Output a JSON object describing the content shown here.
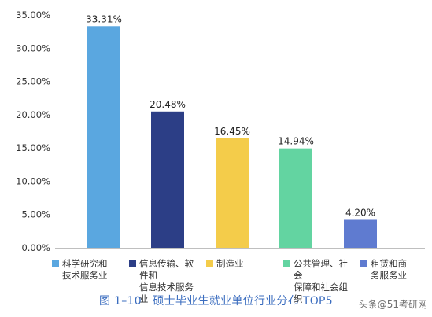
{
  "chart_data": {
    "type": "bar",
    "categories": [
      "科学研究和\n技术服务业",
      "信息传输、软件和\n信息技术服务业",
      "制造业",
      "公共管理、社会\n保障和社会组织",
      "租赁和商\n务服务业"
    ],
    "values": [
      33.31,
      20.48,
      16.45,
      14.94,
      4.2
    ],
    "value_labels": [
      "33.31%",
      "20.48%",
      "16.45%",
      "14.94%",
      "4.20%"
    ],
    "colors": [
      "#5aa7e0",
      "#2c3e86",
      "#f4cc4a",
      "#63d4a1",
      "#5f7bd0"
    ],
    "ylim": [
      0,
      35
    ],
    "yticks": [
      0,
      5,
      10,
      15,
      20,
      25,
      30,
      35
    ],
    "ytick_labels": [
      "0.00%",
      "5.00%",
      "10.00%",
      "15.00%",
      "20.00%",
      "25.00%",
      "30.00%",
      "35.00%"
    ],
    "grid": false,
    "legend_position": "bottom"
  },
  "caption": "图 1–10　硕士毕业生就业单位行业分布 TOP5",
  "watermark": "头条@51考研网"
}
